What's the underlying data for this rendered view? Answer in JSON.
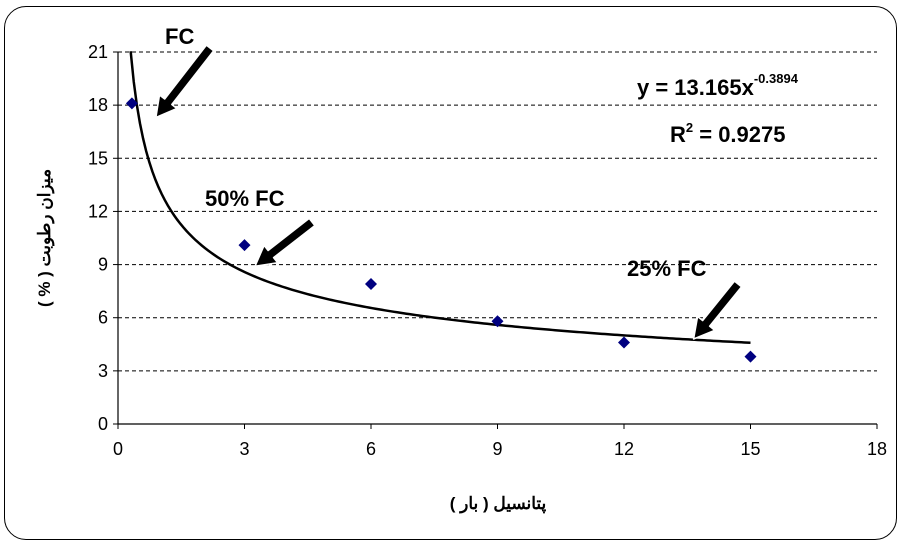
{
  "chart_data": {
    "type": "scatter",
    "x": [
      0.33,
      3,
      6,
      9,
      12,
      15
    ],
    "y": [
      18.1,
      10.1,
      7.9,
      5.8,
      4.6,
      3.8
    ],
    "xlim": [
      0,
      18
    ],
    "ylim": [
      0,
      21
    ],
    "xticks": [
      0,
      3,
      6,
      9,
      12,
      15,
      18
    ],
    "yticks": [
      0,
      3,
      6,
      9,
      12,
      15,
      18,
      21
    ],
    "xlabel": "پتانسیل ( بار )",
    "ylabel": "میزان رطوبت ( % )",
    "grid": "horizontal-dashed",
    "trendline": {
      "type": "power",
      "coefficient": 13.165,
      "exponent": -0.3894,
      "x_range": [
        0.3,
        15
      ],
      "equation_prefix": "y = 13.165x",
      "equation_exponent": "-0.3894",
      "r2_prefix": "R",
      "r2_power": "2",
      "r2_suffix": " = 0.9275"
    },
    "annotations": [
      {
        "label": "FC",
        "target_x": 0.9,
        "target_y": 17.3
      },
      {
        "label": "50% FC",
        "target_x": 3.25,
        "target_y": 8.9
      },
      {
        "label": "25% FC",
        "target_x": 13.65,
        "target_y": 4.8
      }
    ],
    "colors": {
      "marker": "#000080",
      "line": "#000000",
      "grid": "#000000"
    }
  }
}
